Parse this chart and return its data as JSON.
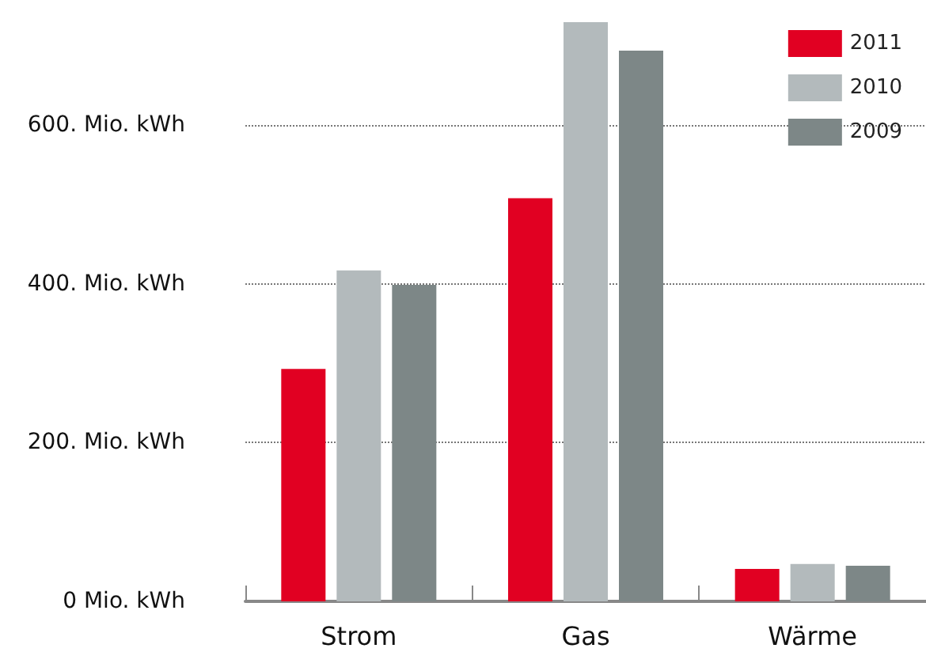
{
  "chart_data": {
    "type": "bar",
    "categories": [
      "Strom",
      "Gas",
      "Wärme"
    ],
    "series": [
      {
        "name": "2011",
        "color": "#e10022",
        "values": [
          293,
          508,
          41
        ]
      },
      {
        "name": "2010",
        "color": "#b3babc",
        "values": [
          417,
          730,
          47
        ]
      },
      {
        "name": "2009",
        "color": "#7d8787",
        "values": [
          399,
          694,
          45
        ]
      }
    ],
    "ylim": [
      0,
      730
    ],
    "yticks": [
      {
        "value": 0,
        "label": "0 Mio. kWh"
      },
      {
        "value": 200,
        "label": "200. Mio. kWh"
      },
      {
        "value": 400,
        "label": "400. Mio. kWh"
      },
      {
        "value": 600,
        "label": "600. Mio. kWh"
      }
    ],
    "grid": "y",
    "legend": "top right"
  }
}
